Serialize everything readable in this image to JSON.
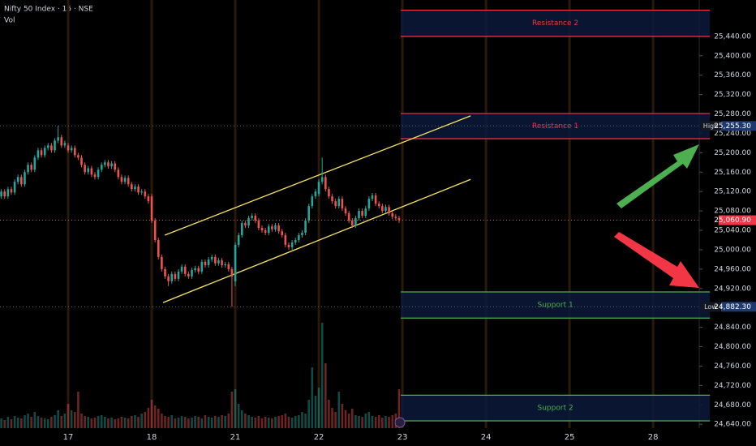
{
  "chart_data": {
    "type": "candlestick",
    "title": "Nifty 50 Index · 15 · NSE",
    "subtitle": "Vol",
    "up_color": "#26a69a",
    "down_color": "#ef5350",
    "x": [
      -20,
      -19,
      -18,
      -17,
      -16,
      -15,
      -14,
      -13,
      -12,
      -11,
      -10,
      -9,
      -8,
      -7,
      -6,
      -5,
      -4,
      -3,
      -2,
      -1,
      0,
      1,
      2,
      3,
      4,
      5,
      6,
      7,
      8,
      9,
      10,
      11,
      12,
      13,
      14,
      15,
      16,
      17,
      18,
      19,
      20,
      21,
      22,
      23,
      24,
      25,
      26,
      27,
      28,
      29,
      30,
      31,
      32,
      33,
      34,
      35,
      36,
      37,
      38,
      39,
      40,
      41,
      42,
      43,
      44,
      45,
      46,
      47,
      48,
      49,
      50,
      51,
      52,
      53,
      54,
      55,
      56,
      57,
      58,
      59,
      60,
      61,
      62,
      63,
      64,
      65,
      66,
      67,
      68,
      69,
      70,
      71,
      72,
      73,
      74,
      75,
      76,
      77,
      78,
      79,
      80,
      81,
      82,
      83,
      84,
      85,
      86,
      87,
      88,
      89,
      90,
      91,
      92,
      93,
      94,
      95,
      96,
      97,
      98,
      99
    ],
    "open": [
      25110,
      25120,
      25110,
      25125,
      25118,
      25140,
      25150,
      25135,
      25160,
      25175,
      25165,
      25190,
      25205,
      25195,
      25210,
      25215,
      25205,
      25225,
      25232,
      25215,
      25215,
      25205,
      25210,
      25195,
      25190,
      25175,
      25160,
      25168,
      25155,
      25150,
      25165,
      25175,
      25180,
      25172,
      25178,
      25165,
      25150,
      25140,
      25148,
      25135,
      25125,
      25130,
      25118,
      25120,
      25110,
      25110,
      25060,
      25020,
      24985,
      24960,
      24945,
      24935,
      24950,
      24940,
      24955,
      24965,
      24950,
      24945,
      24958,
      24962,
      24955,
      24975,
      24968,
      24980,
      24985,
      24972,
      24978,
      24968,
      24970,
      24960,
      24935,
      25010,
      25030,
      25055,
      25050,
      25065,
      25070,
      25060,
      25045,
      25040,
      25035,
      25048,
      25042,
      25050,
      25038,
      25030,
      25010,
      25005,
      25015,
      25020,
      25030,
      25035,
      25060,
      25090,
      25110,
      25115,
      25140,
      25150,
      25125,
      25110,
      25100,
      25090,
      25105,
      25085,
      25075,
      25060,
      25050,
      25065,
      25080,
      25070,
      25085,
      25105,
      25112,
      25095,
      25090,
      25080,
      25088,
      25075,
      25068,
      25065
    ],
    "high": [
      25125,
      25125,
      25130,
      25130,
      25145,
      25155,
      25155,
      25165,
      25180,
      25180,
      25195,
      25210,
      25210,
      25215,
      25220,
      25220,
      25230,
      25255.3,
      25237,
      25225,
      25220,
      25215,
      25215,
      25200,
      25195,
      25180,
      25173,
      25173,
      25160,
      25170,
      25180,
      25185,
      25185,
      25183,
      25183,
      25170,
      25155,
      25153,
      25153,
      25140,
      25135,
      25135,
      25125,
      25125,
      25115,
      25115,
      25065,
      25025,
      24990,
      24965,
      24950,
      24955,
      24955,
      24960,
      24970,
      24970,
      24955,
      24963,
      24967,
      24967,
      24980,
      24980,
      24985,
      24990,
      24990,
      24983,
      24983,
      24975,
      24975,
      24965,
      25015,
      25035,
      25060,
      25060,
      25070,
      25075,
      25075,
      25065,
      25050,
      25045,
      25053,
      25053,
      25055,
      25055,
      25043,
      25035,
      25015,
      25020,
      25025,
      25035,
      25040,
      25065,
      25095,
      25115,
      25125,
      25145,
      25190,
      25155,
      25130,
      25115,
      25105,
      25110,
      25110,
      25090,
      25080,
      25065,
      25070,
      25085,
      25085,
      25090,
      25110,
      25117,
      25117,
      25100,
      25095,
      25093,
      25093,
      25080,
      25073,
      25070
    ],
    "low": [
      25105,
      25105,
      25105,
      25113,
      25113,
      25135,
      25130,
      25130,
      25155,
      25160,
      25160,
      25185,
      25190,
      25190,
      25205,
      25200,
      25200,
      25220,
      25210,
      25210,
      25200,
      25200,
      25190,
      25185,
      25170,
      25155,
      25155,
      25150,
      25145,
      25145,
      25160,
      25170,
      25167,
      25167,
      25160,
      25145,
      25135,
      25135,
      25130,
      25120,
      25120,
      25113,
      25113,
      25105,
      25095,
      25055,
      25015,
      24980,
      24955,
      24940,
      24925,
      24930,
      24935,
      24935,
      24950,
      24945,
      24940,
      24940,
      24953,
      24950,
      24950,
      24963,
      24963,
      24975,
      24967,
      24967,
      24963,
      24963,
      24955,
      24882.3,
      24925,
      25005,
      25025,
      25045,
      25045,
      25060,
      25055,
      25040,
      25035,
      25030,
      25030,
      25037,
      25037,
      25033,
      25025,
      25005,
      25000,
      25000,
      25010,
      25015,
      25025,
      25030,
      25055,
      25085,
      25105,
      25110,
      25135,
      25120,
      25105,
      25095,
      25085,
      25085,
      25080,
      25070,
      25055,
      25045,
      25045,
      25060,
      25065,
      25065,
      25080,
      25100,
      25090,
      25085,
      25075,
      25075,
      25070,
      25063,
      25060,
      25055
    ],
    "close": [
      25120,
      25110,
      25125,
      25118,
      25140,
      25150,
      25135,
      25160,
      25175,
      25165,
      25190,
      25205,
      25195,
      25210,
      25215,
      25205,
      25225,
      25232,
      25215,
      25220,
      25205,
      25210,
      25195,
      25190,
      25175,
      25160,
      25168,
      25155,
      25150,
      25165,
      25175,
      25180,
      25172,
      25178,
      25165,
      25150,
      25140,
      25148,
      25135,
      25125,
      25130,
      25118,
      25120,
      25110,
      25100,
      25060,
      25020,
      24985,
      24960,
      24945,
      24935,
      24950,
      24940,
      24955,
      24965,
      24950,
      24945,
      24958,
      24962,
      24955,
      24975,
      24968,
      24980,
      24985,
      24972,
      24978,
      24968,
      24970,
      24960,
      24945,
      25010,
      25030,
      25055,
      25050,
      25065,
      25070,
      25060,
      25045,
      25040,
      25035,
      25048,
      25042,
      25050,
      25038,
      25030,
      25010,
      25005,
      25015,
      25020,
      25030,
      25035,
      25060,
      25090,
      25110,
      25120,
      25140,
      25150,
      25125,
      25110,
      25100,
      25090,
      25105,
      25085,
      25075,
      25060,
      25050,
      25065,
      25080,
      25070,
      25085,
      25105,
      25112,
      25095,
      25090,
      25080,
      25088,
      25075,
      25068,
      25065,
      25060.9
    ],
    "volume": [
      12,
      10,
      14,
      11,
      15,
      13,
      12,
      16,
      18,
      14,
      20,
      15,
      13,
      12,
      11,
      14,
      16,
      22,
      15,
      18,
      30,
      22,
      20,
      45,
      18,
      15,
      14,
      12,
      13,
      15,
      16,
      14,
      12,
      13,
      11,
      12,
      14,
      13,
      12,
      15,
      16,
      14,
      18,
      20,
      25,
      35,
      28,
      24,
      18,
      15,
      14,
      16,
      12,
      13,
      15,
      14,
      12,
      13,
      15,
      14,
      12,
      16,
      14,
      13,
      15,
      14,
      16,
      15,
      18,
      45,
      48,
      30,
      22,
      18,
      16,
      14,
      13,
      15,
      12,
      14,
      13,
      12,
      14,
      15,
      16,
      18,
      14,
      13,
      15,
      16,
      20,
      18,
      35,
      75,
      40,
      50,
      130,
      80,
      35,
      25,
      20,
      45,
      30,
      22,
      18,
      24,
      16,
      15,
      14,
      18,
      20,
      15,
      14,
      16,
      13,
      15,
      14,
      16,
      18,
      48
    ],
    "vlim": [
      0,
      130
    ],
    "xlim": [
      -20.39,
      188.8
    ],
    "xticks": [
      {
        "value": 0,
        "label": "17"
      },
      {
        "value": 25,
        "label": "18"
      },
      {
        "value": 50,
        "label": "21"
      },
      {
        "value": 75,
        "label": "22"
      },
      {
        "value": 100,
        "label": "23"
      },
      {
        "value": 125,
        "label": "24"
      },
      {
        "value": 150,
        "label": "25"
      },
      {
        "value": 175,
        "label": "28"
      }
    ],
    "ylim": [
      24632,
      25515
    ],
    "yticks": [
      {
        "value": 24640,
        "label": "24,640.00"
      },
      {
        "value": 24680,
        "label": "24,680.00"
      },
      {
        "value": 24720,
        "label": "24,720.00"
      },
      {
        "value": 24760,
        "label": "24,760.00"
      },
      {
        "value": 24800,
        "label": "24,800.00"
      },
      {
        "value": 24840,
        "label": "24,840.00"
      },
      {
        "value": 24880,
        "label": "24,880.00"
      },
      {
        "value": 24920,
        "label": "24,920.00"
      },
      {
        "value": 24960,
        "label": "24,960.00"
      },
      {
        "value": 25000,
        "label": "25,000.00"
      },
      {
        "value": 25040,
        "label": "25,040.00"
      },
      {
        "value": 25080,
        "label": "25,080.00"
      },
      {
        "value": 25120,
        "label": "25,120.00"
      },
      {
        "value": 25160,
        "label": "25,160.00"
      },
      {
        "value": 25200,
        "label": "25,200.00"
      },
      {
        "value": 25240,
        "label": "25,240.00"
      },
      {
        "value": 25280,
        "label": "25,280.00"
      },
      {
        "value": 25320,
        "label": "25,320.00"
      },
      {
        "value": 25360,
        "label": "25,360.00"
      },
      {
        "value": 25400,
        "label": "25,400.00"
      },
      {
        "value": 25440,
        "label": "25,440.00"
      }
    ],
    "zones": [
      {
        "label": "Resistance 2",
        "top": 25494,
        "bottom": 25440,
        "color": "#f23645"
      },
      {
        "label": "Resistance 1",
        "top": 25281,
        "bottom": 25229,
        "color": "#f23645"
      },
      {
        "label": "Support 1",
        "top": 24913,
        "bottom": 24859,
        "color": "#4caf50"
      },
      {
        "label": "Support 2",
        "top": 24700,
        "bottom": 24647,
        "color": "#4caf50"
      }
    ],
    "zone_start": 99.5,
    "zone_end": 192,
    "trendlines": [
      {
        "color": "#f7e463",
        "x": [
          28.9,
          120.4
        ],
        "y": [
          25030,
          25276
        ]
      },
      {
        "color": "#f7e463",
        "x": [
          28.4,
          120.4
        ],
        "y": [
          24891,
          25145
        ]
      }
    ],
    "markers": [
      {
        "name": "High",
        "value": 25255.3,
        "label": "25,255.30"
      },
      {
        "name": "Low",
        "value": 24882.3,
        "label": "24,882.30"
      }
    ],
    "last_price": {
      "value": 25060.9,
      "label": "25,060.90"
    }
  }
}
